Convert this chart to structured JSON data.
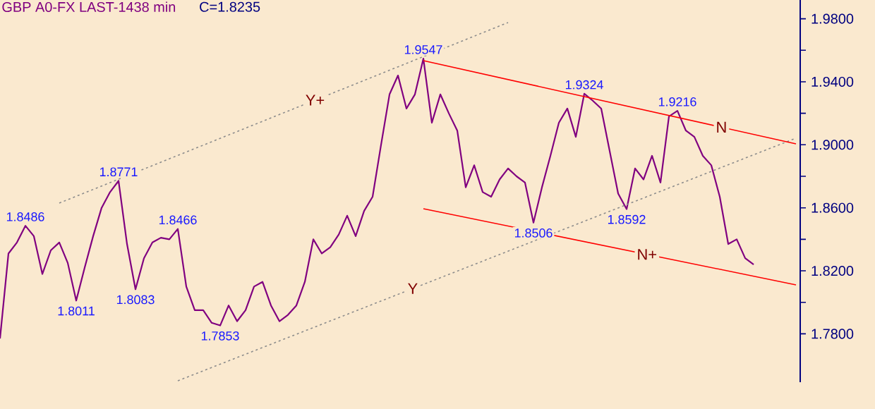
{
  "chart_data": {
    "type": "line",
    "title": "GBP A0-FX LAST-1438 min",
    "subtitle": "C=1.8235",
    "categories": [
      null,
      null,
      null,
      null,
      null,
      null,
      null,
      null,
      null,
      null,
      null,
      null,
      null,
      null,
      null,
      null,
      null,
      null,
      null,
      null,
      null,
      null,
      null,
      null,
      null,
      null,
      null,
      null,
      null,
      null,
      null,
      null,
      null,
      null,
      null,
      null,
      null,
      null,
      null,
      null,
      null,
      null,
      null,
      null,
      null,
      null,
      null,
      null,
      null,
      null,
      null,
      null,
      null,
      null,
      null,
      null,
      null,
      null,
      null,
      null,
      null,
      null,
      null,
      null,
      null,
      null,
      null,
      null,
      null,
      null,
      null,
      null,
      null,
      null,
      null,
      null,
      null,
      null,
      null,
      null,
      null,
      null,
      null,
      null,
      null,
      null,
      null,
      null,
      null,
      null,
      null,
      null,
      null,
      null,
      null
    ],
    "ylim": [
      1.7493,
      1.9919
    ],
    "tick_labels": "y",
    "yticks": [
      {
        "value": 1.78,
        "label": "1.7800"
      },
      {
        "value": 1.8,
        "label": null
      },
      {
        "value": 1.82,
        "label": "1.8200"
      },
      {
        "value": 1.84,
        "label": null
      },
      {
        "value": 1.86,
        "label": "1.8600"
      },
      {
        "value": 1.88,
        "label": null
      },
      {
        "value": 1.9,
        "label": "1.9000"
      },
      {
        "value": 1.92,
        "label": null
      },
      {
        "value": 1.94,
        "label": "1.9400"
      },
      {
        "value": 1.96,
        "label": null
      },
      {
        "value": 1.98,
        "label": "1.9800"
      }
    ],
    "series": [
      {
        "color": "#800080",
        "line_style": "solid",
        "values": [
          1.777,
          1.831,
          1.838,
          1.8486,
          1.842,
          1.818,
          1.833,
          1.838,
          1.825,
          1.8011,
          1.822,
          1.842,
          1.86,
          1.87,
          1.8771,
          1.837,
          1.8083,
          1.828,
          1.838,
          1.841,
          1.84,
          1.8466,
          1.81,
          1.795,
          1.795,
          1.787,
          1.7853,
          1.798,
          1.788,
          1.795,
          1.81,
          1.813,
          1.798,
          1.788,
          1.792,
          1.798,
          1.813,
          1.84,
          1.831,
          1.835,
          1.843,
          1.855,
          1.842,
          1.858,
          1.867,
          1.9,
          1.932,
          1.944,
          1.923,
          1.932,
          1.9547,
          1.914,
          1.932,
          1.92,
          1.909,
          1.873,
          1.887,
          1.87,
          1.867,
          1.878,
          1.885,
          1.88,
          1.876,
          1.8506,
          1.873,
          1.893,
          1.914,
          1.923,
          1.905,
          1.9324,
          1.928,
          1.923,
          1.896,
          1.869,
          1.8592,
          1.885,
          1.878,
          1.893,
          1.876,
          1.918,
          1.9216,
          1.909,
          1.905,
          1.893,
          1.887,
          1.867,
          1.837,
          1.84,
          1.828,
          1.824,
          null,
          null,
          null,
          null,
          null
        ],
        "value_labels": [
          null,
          null,
          null,
          "1.8486",
          null,
          null,
          null,
          null,
          null,
          "1.8011",
          null,
          null,
          null,
          null,
          "1.8771",
          null,
          "1.8083",
          null,
          null,
          null,
          null,
          "1.8466",
          null,
          null,
          null,
          null,
          "1.7853",
          null,
          null,
          null,
          null,
          null,
          null,
          null,
          null,
          null,
          null,
          null,
          null,
          null,
          null,
          null,
          null,
          null,
          null,
          null,
          null,
          null,
          null,
          null,
          "1.9547",
          null,
          null,
          null,
          null,
          null,
          null,
          null,
          null,
          null,
          null,
          null,
          null,
          "1.8506",
          null,
          null,
          null,
          null,
          null,
          "1.9324",
          null,
          null,
          null,
          null,
          "1.8592",
          null,
          null,
          null,
          null,
          null,
          "1.9216",
          null,
          null,
          null,
          null,
          null,
          null,
          null,
          null,
          null,
          null,
          null,
          null,
          null,
          null
        ]
      },
      {
        "name": "Y+",
        "color": "#8c8c8c",
        "line_style": "dotted",
        "values": [
          null,
          null,
          null,
          null,
          null,
          null,
          null,
          1.863,
          null,
          null,
          null,
          null,
          null,
          null,
          null,
          null,
          null,
          null,
          null,
          null,
          null,
          null,
          null,
          null,
          null,
          null,
          null,
          null,
          null,
          null,
          null,
          null,
          null,
          null,
          null,
          null,
          null,
          null,
          null,
          null,
          null,
          null,
          null,
          null,
          null,
          null,
          null,
          null,
          null,
          null,
          null,
          null,
          null,
          null,
          null,
          null,
          null,
          null,
          null,
          null,
          1.9776,
          null,
          null,
          null,
          null,
          null,
          null,
          null,
          null,
          null,
          null,
          null,
          null,
          null,
          null,
          null,
          null,
          null,
          null,
          null,
          null,
          null,
          null,
          null,
          null,
          null,
          null,
          null,
          null,
          null,
          null,
          null,
          null,
          null,
          null
        ]
      },
      {
        "name": "Y",
        "color": "#8c8c8c",
        "line_style": "dotted",
        "values": [
          null,
          null,
          null,
          null,
          null,
          null,
          null,
          null,
          null,
          null,
          null,
          null,
          null,
          null,
          null,
          null,
          null,
          null,
          null,
          null,
          null,
          1.7502,
          null,
          null,
          null,
          null,
          null,
          null,
          null,
          null,
          null,
          null,
          null,
          null,
          null,
          null,
          null,
          null,
          null,
          null,
          null,
          null,
          null,
          null,
          null,
          null,
          null,
          null,
          null,
          null,
          null,
          null,
          null,
          null,
          null,
          null,
          null,
          null,
          null,
          null,
          null,
          null,
          null,
          null,
          null,
          null,
          null,
          null,
          null,
          null,
          null,
          null,
          null,
          null,
          null,
          null,
          null,
          null,
          null,
          null,
          null,
          null,
          null,
          null,
          null,
          null,
          null,
          null,
          null,
          null,
          null,
          null,
          null,
          null,
          1.9042
        ]
      },
      {
        "name": "N",
        "color": "#ff0000",
        "line_style": "solid",
        "values": [
          null,
          null,
          null,
          null,
          null,
          null,
          null,
          null,
          null,
          null,
          null,
          null,
          null,
          null,
          null,
          null,
          null,
          null,
          null,
          null,
          null,
          null,
          null,
          null,
          null,
          null,
          null,
          null,
          null,
          null,
          null,
          null,
          null,
          null,
          null,
          null,
          null,
          null,
          null,
          null,
          null,
          null,
          null,
          null,
          null,
          null,
          null,
          null,
          null,
          null,
          1.9534,
          null,
          null,
          null,
          null,
          null,
          null,
          null,
          null,
          null,
          null,
          null,
          null,
          null,
          null,
          null,
          null,
          null,
          null,
          null,
          null,
          null,
          null,
          null,
          null,
          null,
          null,
          null,
          null,
          null,
          null,
          null,
          null,
          null,
          null,
          null,
          null,
          null,
          null,
          null,
          null,
          null,
          null,
          null,
          1.9006
        ]
      },
      {
        "name": "N+",
        "color": "#ff0000",
        "line_style": "solid",
        "values": [
          null,
          null,
          null,
          null,
          null,
          null,
          null,
          null,
          null,
          null,
          null,
          null,
          null,
          null,
          null,
          null,
          null,
          null,
          null,
          null,
          null,
          null,
          null,
          null,
          null,
          null,
          null,
          null,
          null,
          null,
          null,
          null,
          null,
          null,
          null,
          null,
          null,
          null,
          null,
          null,
          null,
          null,
          null,
          null,
          null,
          null,
          null,
          null,
          null,
          null,
          1.8594,
          null,
          null,
          null,
          null,
          null,
          null,
          null,
          null,
          null,
          null,
          null,
          null,
          null,
          null,
          null,
          null,
          null,
          null,
          null,
          null,
          null,
          null,
          null,
          null,
          null,
          null,
          null,
          null,
          null,
          null,
          null,
          null,
          null,
          null,
          null,
          null,
          null,
          null,
          null,
          null,
          null,
          null,
          null,
          1.8111
        ]
      }
    ]
  }
}
